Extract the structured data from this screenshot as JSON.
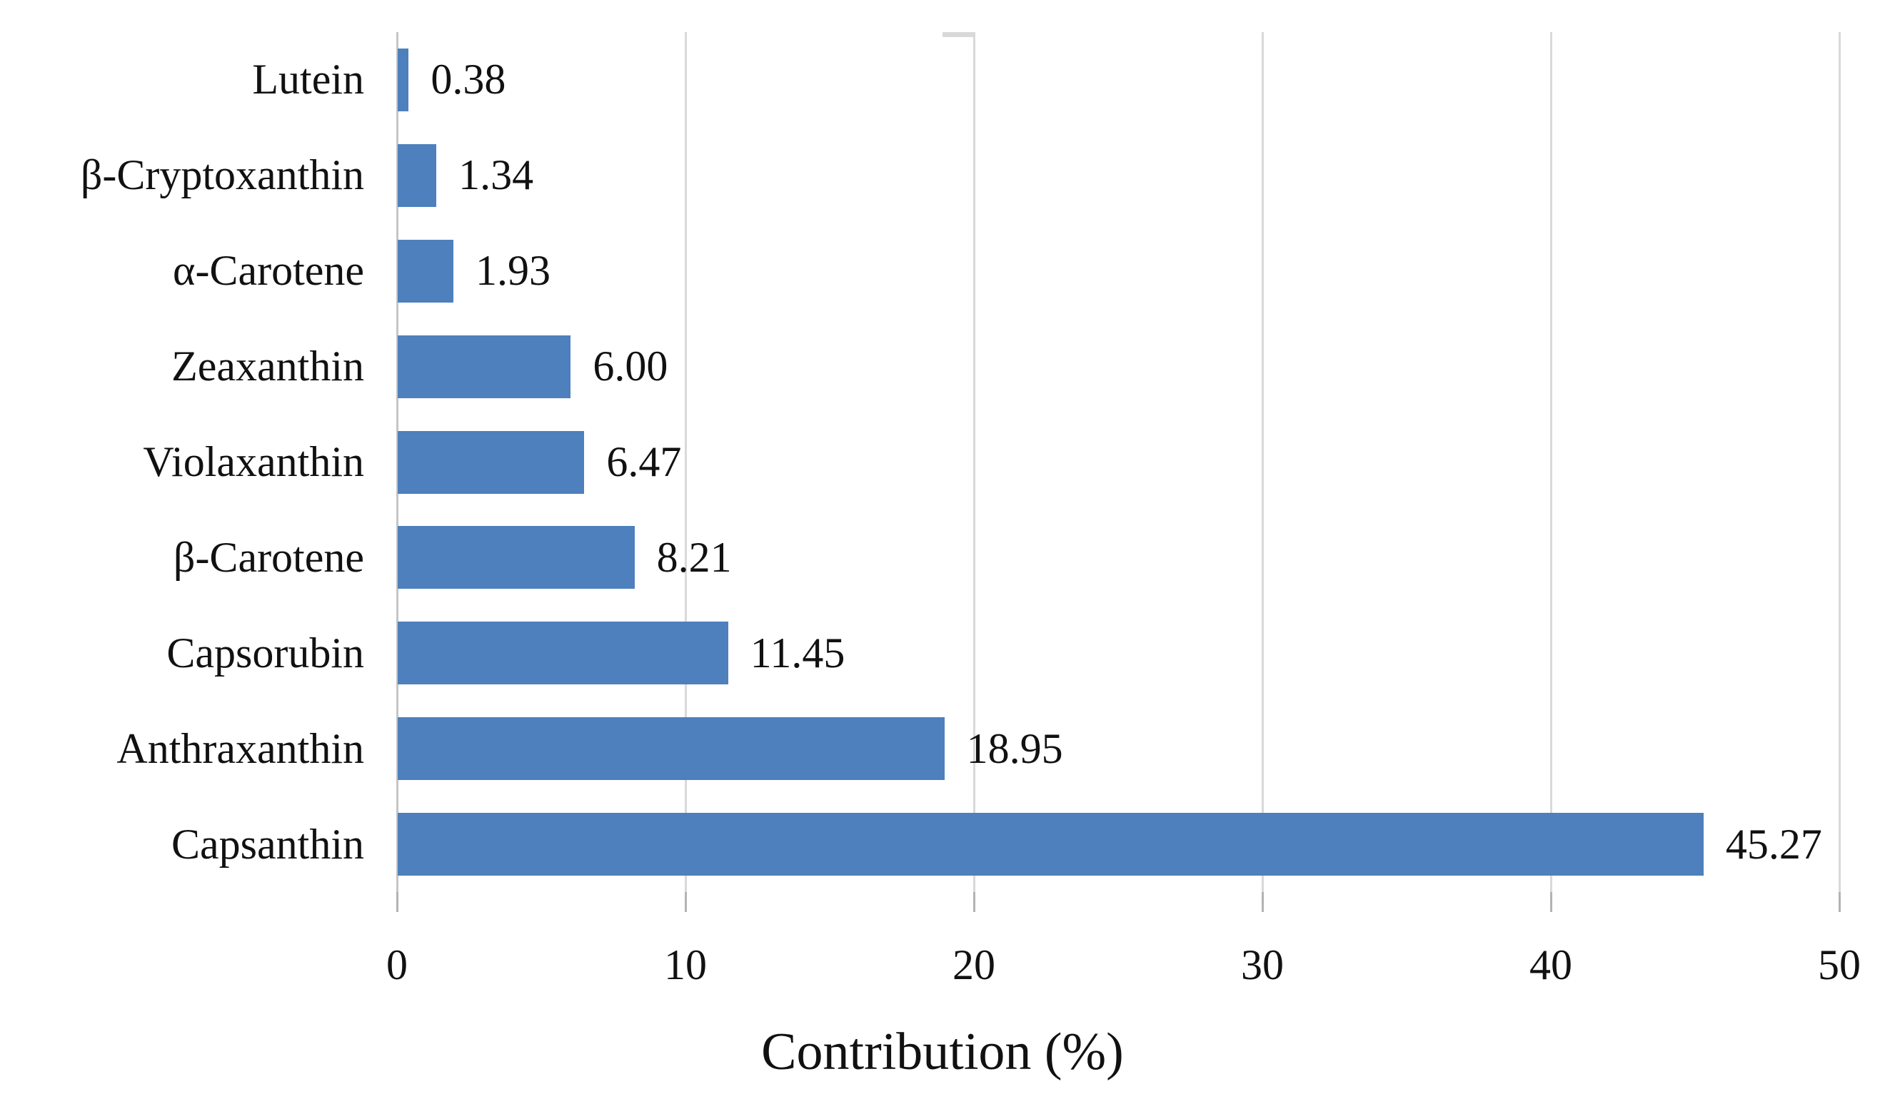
{
  "chart_data": {
    "type": "bar",
    "orientation": "horizontal",
    "title": "",
    "xlabel": "Contribution (%)",
    "ylabel": "",
    "xlim": [
      0,
      50
    ],
    "xticks": [
      0,
      10,
      20,
      30,
      40,
      50
    ],
    "grid": "vertical gridlines on",
    "legend_position": "none",
    "categories": [
      "Lutein",
      "β-Cryptoxanthin",
      "α-Carotene",
      "Zeaxanthin",
      "Violaxanthin",
      "β-Carotene",
      "Capsorubin",
      "Anthraxanthin",
      "Capsanthin"
    ],
    "values": [
      0.38,
      1.34,
      1.93,
      6.0,
      6.47,
      8.21,
      11.45,
      18.95,
      45.27
    ],
    "value_labels": [
      "0.38",
      "1.34",
      "1.93",
      "6.00",
      "6.47",
      "8.21",
      "11.45",
      "18.95",
      "45.27"
    ],
    "colors": {
      "bar": "#4d80bc",
      "gridline": "#d9d9d9",
      "axis_line": "#c6c6c6",
      "tick": "#b3b3b3",
      "text": "#111111",
      "background": "#ffffff"
    }
  }
}
